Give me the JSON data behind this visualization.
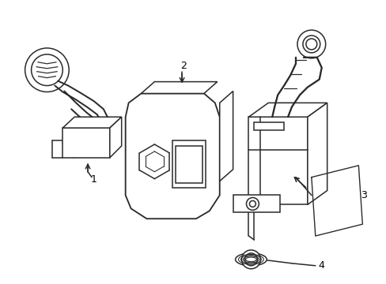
{
  "background_color": "#ffffff",
  "line_color": "#2a2a2a",
  "line_width": 1.1,
  "fig_w": 4.89,
  "fig_h": 3.6,
  "dpi": 100
}
